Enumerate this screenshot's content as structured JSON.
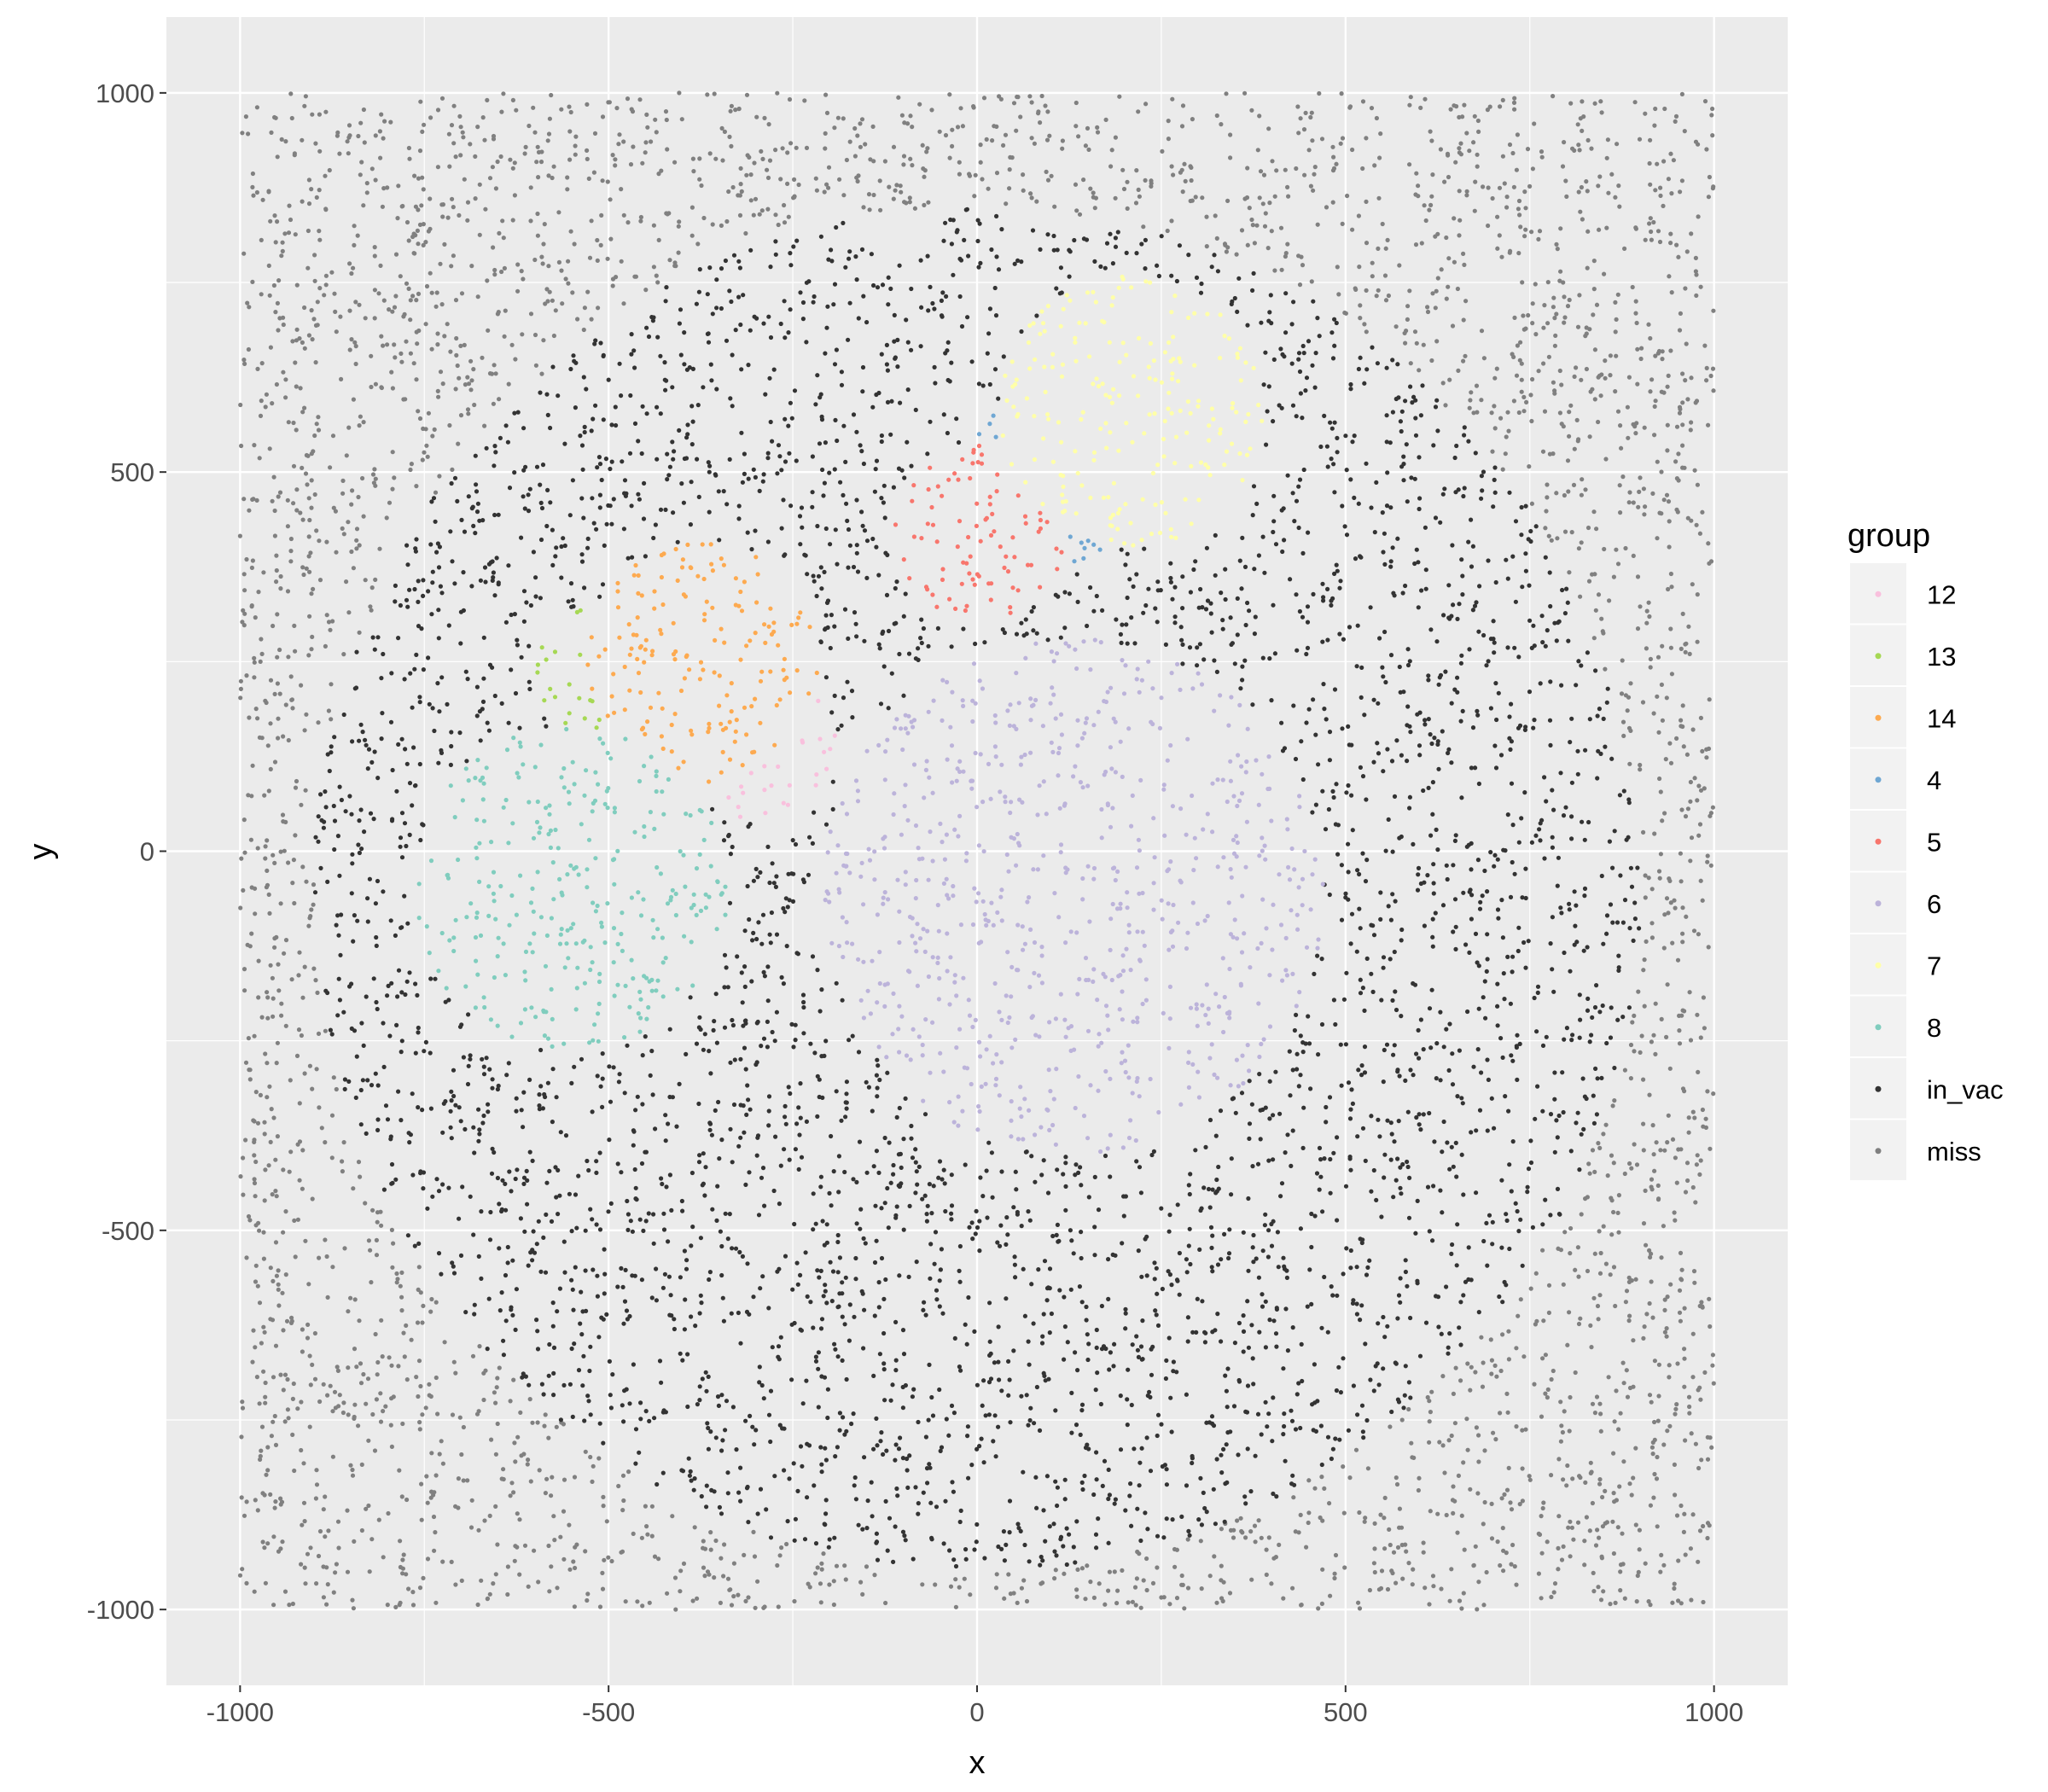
{
  "chart_data": {
    "type": "scatter",
    "title": "",
    "xlabel": "x",
    "ylabel": "y",
    "xlim": [
      -1100,
      1100
    ],
    "ylim": [
      -1100,
      1100
    ],
    "x_ticks": [
      -1000,
      -500,
      0,
      500,
      1000
    ],
    "y_ticks": [
      -1000,
      -500,
      0,
      500,
      1000
    ],
    "x_tick_labels": [
      "-1000",
      "-500",
      "0",
      "500",
      "1000"
    ],
    "y_tick_labels": [
      "-1000",
      "-500",
      "0",
      "500",
      "1000"
    ],
    "grid": true,
    "legend_position": "right",
    "legend_title": "group",
    "point_region": {
      "x_range": [
        -1000,
        1000
      ],
      "y_range": [
        -1000,
        1000
      ]
    },
    "vacuole": {
      "center": [
        0,
        -50
      ],
      "radius_x": 900,
      "radius_y": 900
    },
    "series": [
      {
        "name": "12",
        "color": "#F9C0DD",
        "center": [
          -290,
          140
        ],
        "radius": 100
      },
      {
        "name": "13",
        "color": "#A6D854",
        "center": [
          -510,
          240
        ],
        "radius": 90
      },
      {
        "name": "14",
        "color": "#FDAA50",
        "center": [
          -370,
          250
        ],
        "radius": 160
      },
      {
        "name": "4",
        "color": "#6FA7D3",
        "center": [
          110,
          500
        ],
        "radius": 120
      },
      {
        "name": "5",
        "color": "#F8766D",
        "center": [
          0,
          420
        ],
        "radius": 120
      },
      {
        "name": "6",
        "color": "#BCB3DA",
        "center": [
          130,
          -60
        ],
        "radius": 340
      },
      {
        "name": "7",
        "color": "#FFFFA8",
        "center": [
          210,
          580
        ],
        "radius": 180
      },
      {
        "name": "8",
        "color": "#80CDBE",
        "center": [
          -550,
          -50
        ],
        "radius": 215
      },
      {
        "name": "in_vac",
        "color": "#333333"
      },
      {
        "name": "miss",
        "color": "#808080"
      }
    ]
  }
}
